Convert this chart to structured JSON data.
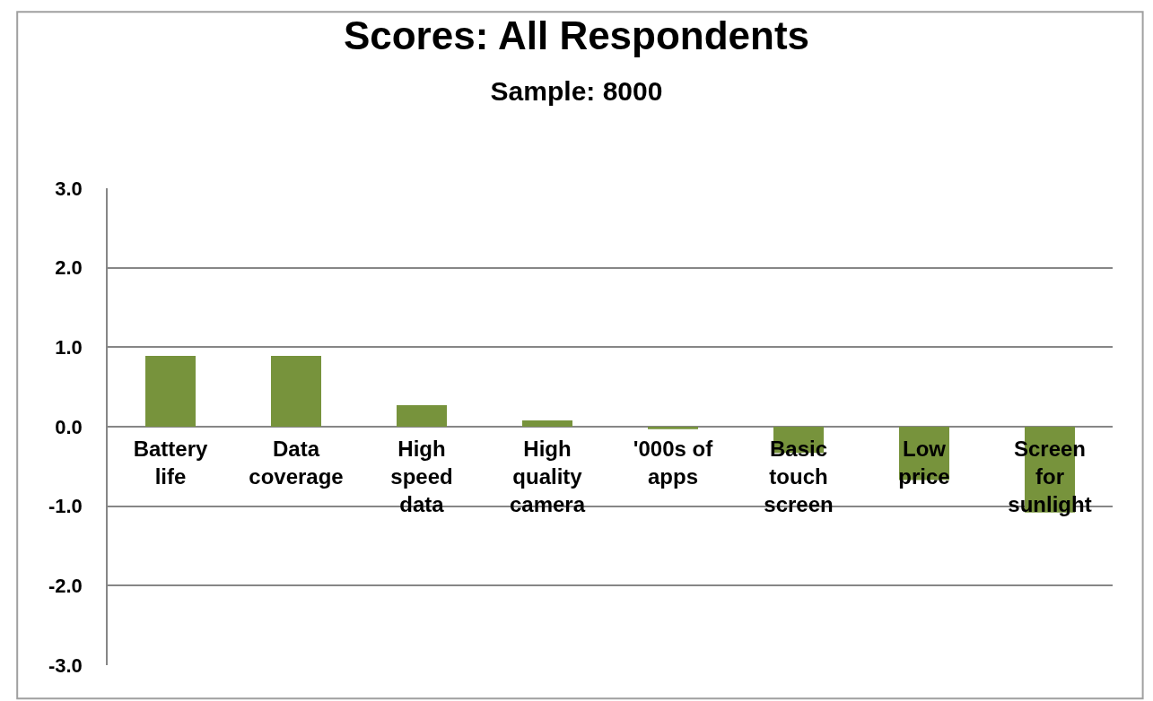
{
  "chart_data": {
    "type": "bar",
    "title": "Scores: All Respondents",
    "subtitle": "Sample: 8000",
    "categories": [
      "Battery life",
      "Data coverage",
      "High speed data",
      "High quality camera",
      "'000s of apps",
      "Basic touch screen",
      "Low price",
      "Screen for sunlight"
    ],
    "values": [
      0.89,
      0.89,
      0.27,
      0.08,
      -0.03,
      -0.33,
      -0.67,
      -1.08
    ],
    "color": "#77933c",
    "ylim": [
      -3.0,
      3.0
    ],
    "yticks": [
      {
        "value": -3,
        "label": "-3.0"
      },
      {
        "value": -2,
        "label": "-2.0"
      },
      {
        "value": -1,
        "label": "-1.0"
      },
      {
        "value": 0,
        "label": "0.0"
      },
      {
        "value": 1,
        "label": "1.0"
      },
      {
        "value": 2,
        "label": "2.0"
      },
      {
        "value": 3,
        "label": "3.0"
      }
    ],
    "grid": "y"
  }
}
